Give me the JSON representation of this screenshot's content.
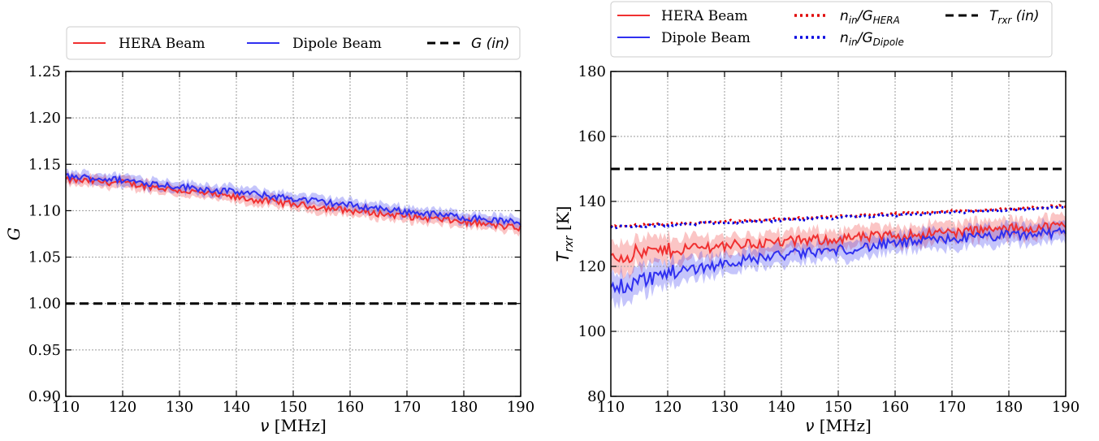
{
  "chart_data": [
    {
      "type": "line",
      "xlabel": "ν [MHz]",
      "ylabel": "G",
      "xlim": [
        110,
        190
      ],
      "ylim": [
        0.9,
        1.25
      ],
      "xticks": [
        "110",
        "120",
        "130",
        "140",
        "150",
        "160",
        "170",
        "180",
        "190"
      ],
      "yticks": [
        "0.90",
        "0.95",
        "1.00",
        "1.05",
        "1.10",
        "1.15",
        "1.20",
        "1.25"
      ],
      "grid": true,
      "legend": "top-center, outside",
      "series": [
        {
          "name": "HERA Beam",
          "style": "solid",
          "color": "#f03030",
          "band": true,
          "x": [
            110,
            120,
            130,
            140,
            150,
            160,
            170,
            180,
            190
          ],
          "y": [
            1.133,
            1.13,
            1.122,
            1.114,
            1.107,
            1.1,
            1.094,
            1.088,
            1.081
          ]
        },
        {
          "name": "Dipole Beam",
          "style": "solid",
          "color": "#3030f0",
          "band": true,
          "x": [
            110,
            120,
            130,
            140,
            150,
            160,
            170,
            180,
            190
          ],
          "y": [
            1.137,
            1.133,
            1.126,
            1.12,
            1.113,
            1.106,
            1.099,
            1.093,
            1.087
          ]
        },
        {
          "name": "G (in)",
          "style": "dashed",
          "color": "#000000",
          "x": [
            110,
            190
          ],
          "y": [
            1.0,
            1.0
          ]
        }
      ]
    },
    {
      "type": "line",
      "xlabel": "ν [MHz]",
      "ylabel": "T_rxr [K]",
      "xlim": [
        110,
        190
      ],
      "ylim": [
        80,
        180
      ],
      "xticks": [
        "110",
        "120",
        "130",
        "140",
        "150",
        "160",
        "170",
        "180",
        "190"
      ],
      "yticks": [
        "80",
        "100",
        "120",
        "140",
        "160",
        "180"
      ],
      "grid": true,
      "legend": "top-center, outside",
      "series": [
        {
          "name": "HERA Beam",
          "style": "solid",
          "color": "#f03030",
          "band": true,
          "x": [
            110,
            120,
            130,
            140,
            150,
            160,
            170,
            180,
            190
          ],
          "y": [
            123,
            125,
            126.5,
            127.5,
            128.5,
            129.5,
            130.5,
            131.5,
            132.5
          ]
        },
        {
          "name": "Dipole Beam",
          "style": "solid",
          "color": "#3030f0",
          "band": true,
          "x": [
            110,
            120,
            130,
            140,
            150,
            160,
            170,
            180,
            190
          ],
          "y": [
            113,
            118,
            121,
            123.5,
            125,
            127,
            128.5,
            129.5,
            130.5
          ]
        },
        {
          "name": "n_in/G_HERA",
          "style": "dotted",
          "color": "#e00000",
          "x": [
            110,
            120,
            130,
            140,
            150,
            160,
            170,
            180,
            190
          ],
          "y": [
            132.3,
            133.0,
            133.8,
            134.6,
            135.4,
            136.2,
            137.0,
            137.8,
            138.6
          ]
        },
        {
          "name": "n_in/G_Dipole",
          "style": "dotted",
          "color": "#0000e0",
          "x": [
            110,
            120,
            130,
            140,
            150,
            160,
            170,
            180,
            190
          ],
          "y": [
            132.0,
            132.7,
            133.4,
            134.2,
            135.0,
            135.8,
            136.6,
            137.4,
            138.1
          ]
        },
        {
          "name": "T_rxr (in)",
          "style": "dashed",
          "color": "#000000",
          "x": [
            110,
            190
          ],
          "y": [
            150,
            150
          ]
        }
      ]
    }
  ],
  "legend_text": {
    "hera": "HERA Beam",
    "dipole": "Dipole Beam",
    "g_in": "G (in)",
    "n_over_g_hera_main": "n",
    "n_over_g_hera_sub1": "in",
    "n_over_g_hera_mid": "/G",
    "n_over_g_hera_sub2": "HERA",
    "n_over_g_dipole_main": "n",
    "n_over_g_dipole_sub1": "in",
    "n_over_g_dipole_mid": "/G",
    "n_over_g_dipole_sub2": "Dipole",
    "trxr_main": "T",
    "trxr_sub": "rxr",
    "trxr_rest": " (in)"
  },
  "axis_text": {
    "left_ylabel": "G",
    "xlabel_nu": "ν",
    "xlabel_unit": " [MHz]",
    "right_ylabel_main": "T",
    "right_ylabel_sub": "rxr",
    "right_ylabel_unit": " [K]"
  }
}
